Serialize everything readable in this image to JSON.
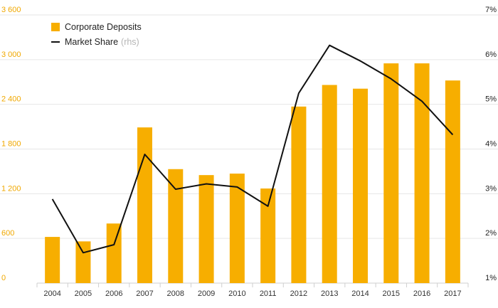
{
  "chart_data": {
    "type": "bar",
    "categories": [
      "2004",
      "2005",
      "2006",
      "2007",
      "2008",
      "2009",
      "2010",
      "2011",
      "2012",
      "2013",
      "2014",
      "2015",
      "2016",
      "2017"
    ],
    "series": [
      {
        "name": "Corporate Deposits",
        "type": "bar",
        "axis": "left",
        "color": "#f7ae00",
        "values": [
          620,
          560,
          800,
          2090,
          1530,
          1450,
          1470,
          1270,
          2370,
          2660,
          2610,
          2950,
          2950,
          2720
        ]
      },
      {
        "name": "Market Share",
        "unit_label": "(rhs)",
        "type": "line",
        "axis": "right",
        "color": "#111111",
        "values": [
          2.88,
          1.68,
          1.86,
          3.88,
          3.1,
          3.22,
          3.15,
          2.72,
          5.25,
          6.32,
          5.97,
          5.57,
          5.07,
          4.32
        ]
      }
    ],
    "y_left": {
      "ticks": [
        "0",
        "600",
        "1 200",
        "1 800",
        "2 400",
        "3 000",
        "3 600"
      ],
      "ylim": [
        0,
        3600
      ]
    },
    "y_right": {
      "ticks": [
        "1%",
        "2%",
        "3%",
        "4%",
        "5%",
        "6%",
        "7%"
      ],
      "ylim": [
        1,
        7
      ]
    },
    "title": "",
    "xlabel": "",
    "ylabel": "",
    "grid": true,
    "legend_position": "top-left",
    "colors": {
      "bar": "#f7ae00",
      "line": "#111111",
      "left_tick": "#f0a800",
      "right_tick": "#222222",
      "grid": "#e6e6e6",
      "legend_unit": "#b5b5b5"
    }
  }
}
